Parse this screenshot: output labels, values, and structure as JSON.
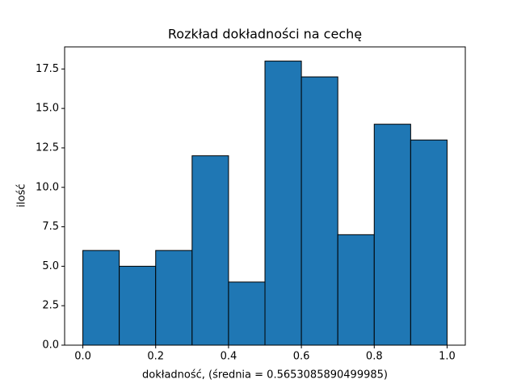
{
  "chart_data": {
    "type": "histogram",
    "title": "Rozkład dokładności na cechę",
    "xlabel": "dokładność, (średnia = 0.5653085890499985)",
    "ylabel": "ilość",
    "bins": [
      0,
      0.1,
      0.2,
      0.3,
      0.4,
      0.5,
      0.6,
      0.7,
      0.8,
      0.9,
      1.0
    ],
    "values": [
      6,
      5,
      6,
      12,
      4,
      18,
      17,
      7,
      14,
      13
    ],
    "color": "#1f77b4",
    "edgecolor": "#000000",
    "xlim": [
      -0.05,
      1.05
    ],
    "xticks": [
      {
        "value": 0,
        "label": "0.0"
      },
      0.2,
      0.4,
      0.6,
      0.8,
      {
        "value": 1,
        "label": "1.0"
      }
    ],
    "ylim": [
      0,
      18.9
    ],
    "yticks": [
      {
        "value": 0,
        "label": "0.0"
      },
      2.5,
      {
        "value": 5,
        "label": "5.0"
      },
      7.5,
      {
        "value": 10,
        "label": "10.0"
      },
      12.5,
      {
        "value": 15,
        "label": "15.0"
      },
      17.5
    ],
    "grid": false
  }
}
